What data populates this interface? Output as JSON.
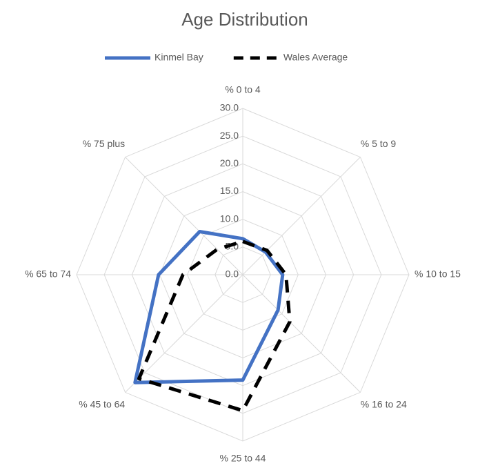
{
  "chart_data": {
    "type": "radar",
    "title": "Age Distribution",
    "categories": [
      "% 0 to 4",
      "% 5 to 9",
      "% 10 to 15",
      "% 16 to 24",
      "% 25 to 44",
      "% 45 to 64",
      "% 65 to 74",
      "% 75 plus"
    ],
    "series": [
      {
        "name": "Kinmel Bay",
        "color": "#4472c4",
        "values": [
          6.5,
          5.8,
          7.2,
          9.0,
          19.0,
          27.5,
          15.2,
          11.0
        ]
      },
      {
        "name": "Wales Average",
        "color": "#000000",
        "values": [
          6.0,
          6.2,
          7.8,
          12.0,
          24.5,
          26.5,
          10.8,
          6.5
        ]
      }
    ],
    "ylim": [
      0,
      30
    ],
    "yticks": [
      {
        "value": 0,
        "label": "0.0"
      },
      {
        "value": 5,
        "label": "5.0"
      },
      {
        "value": 10,
        "label": "10.0"
      },
      {
        "value": 15,
        "label": "15.0"
      },
      {
        "value": 20,
        "label": "20.0"
      },
      {
        "value": 25,
        "label": "25.0"
      },
      {
        "value": 30,
        "label": "30.0"
      }
    ],
    "grid": true,
    "legend": "top"
  }
}
